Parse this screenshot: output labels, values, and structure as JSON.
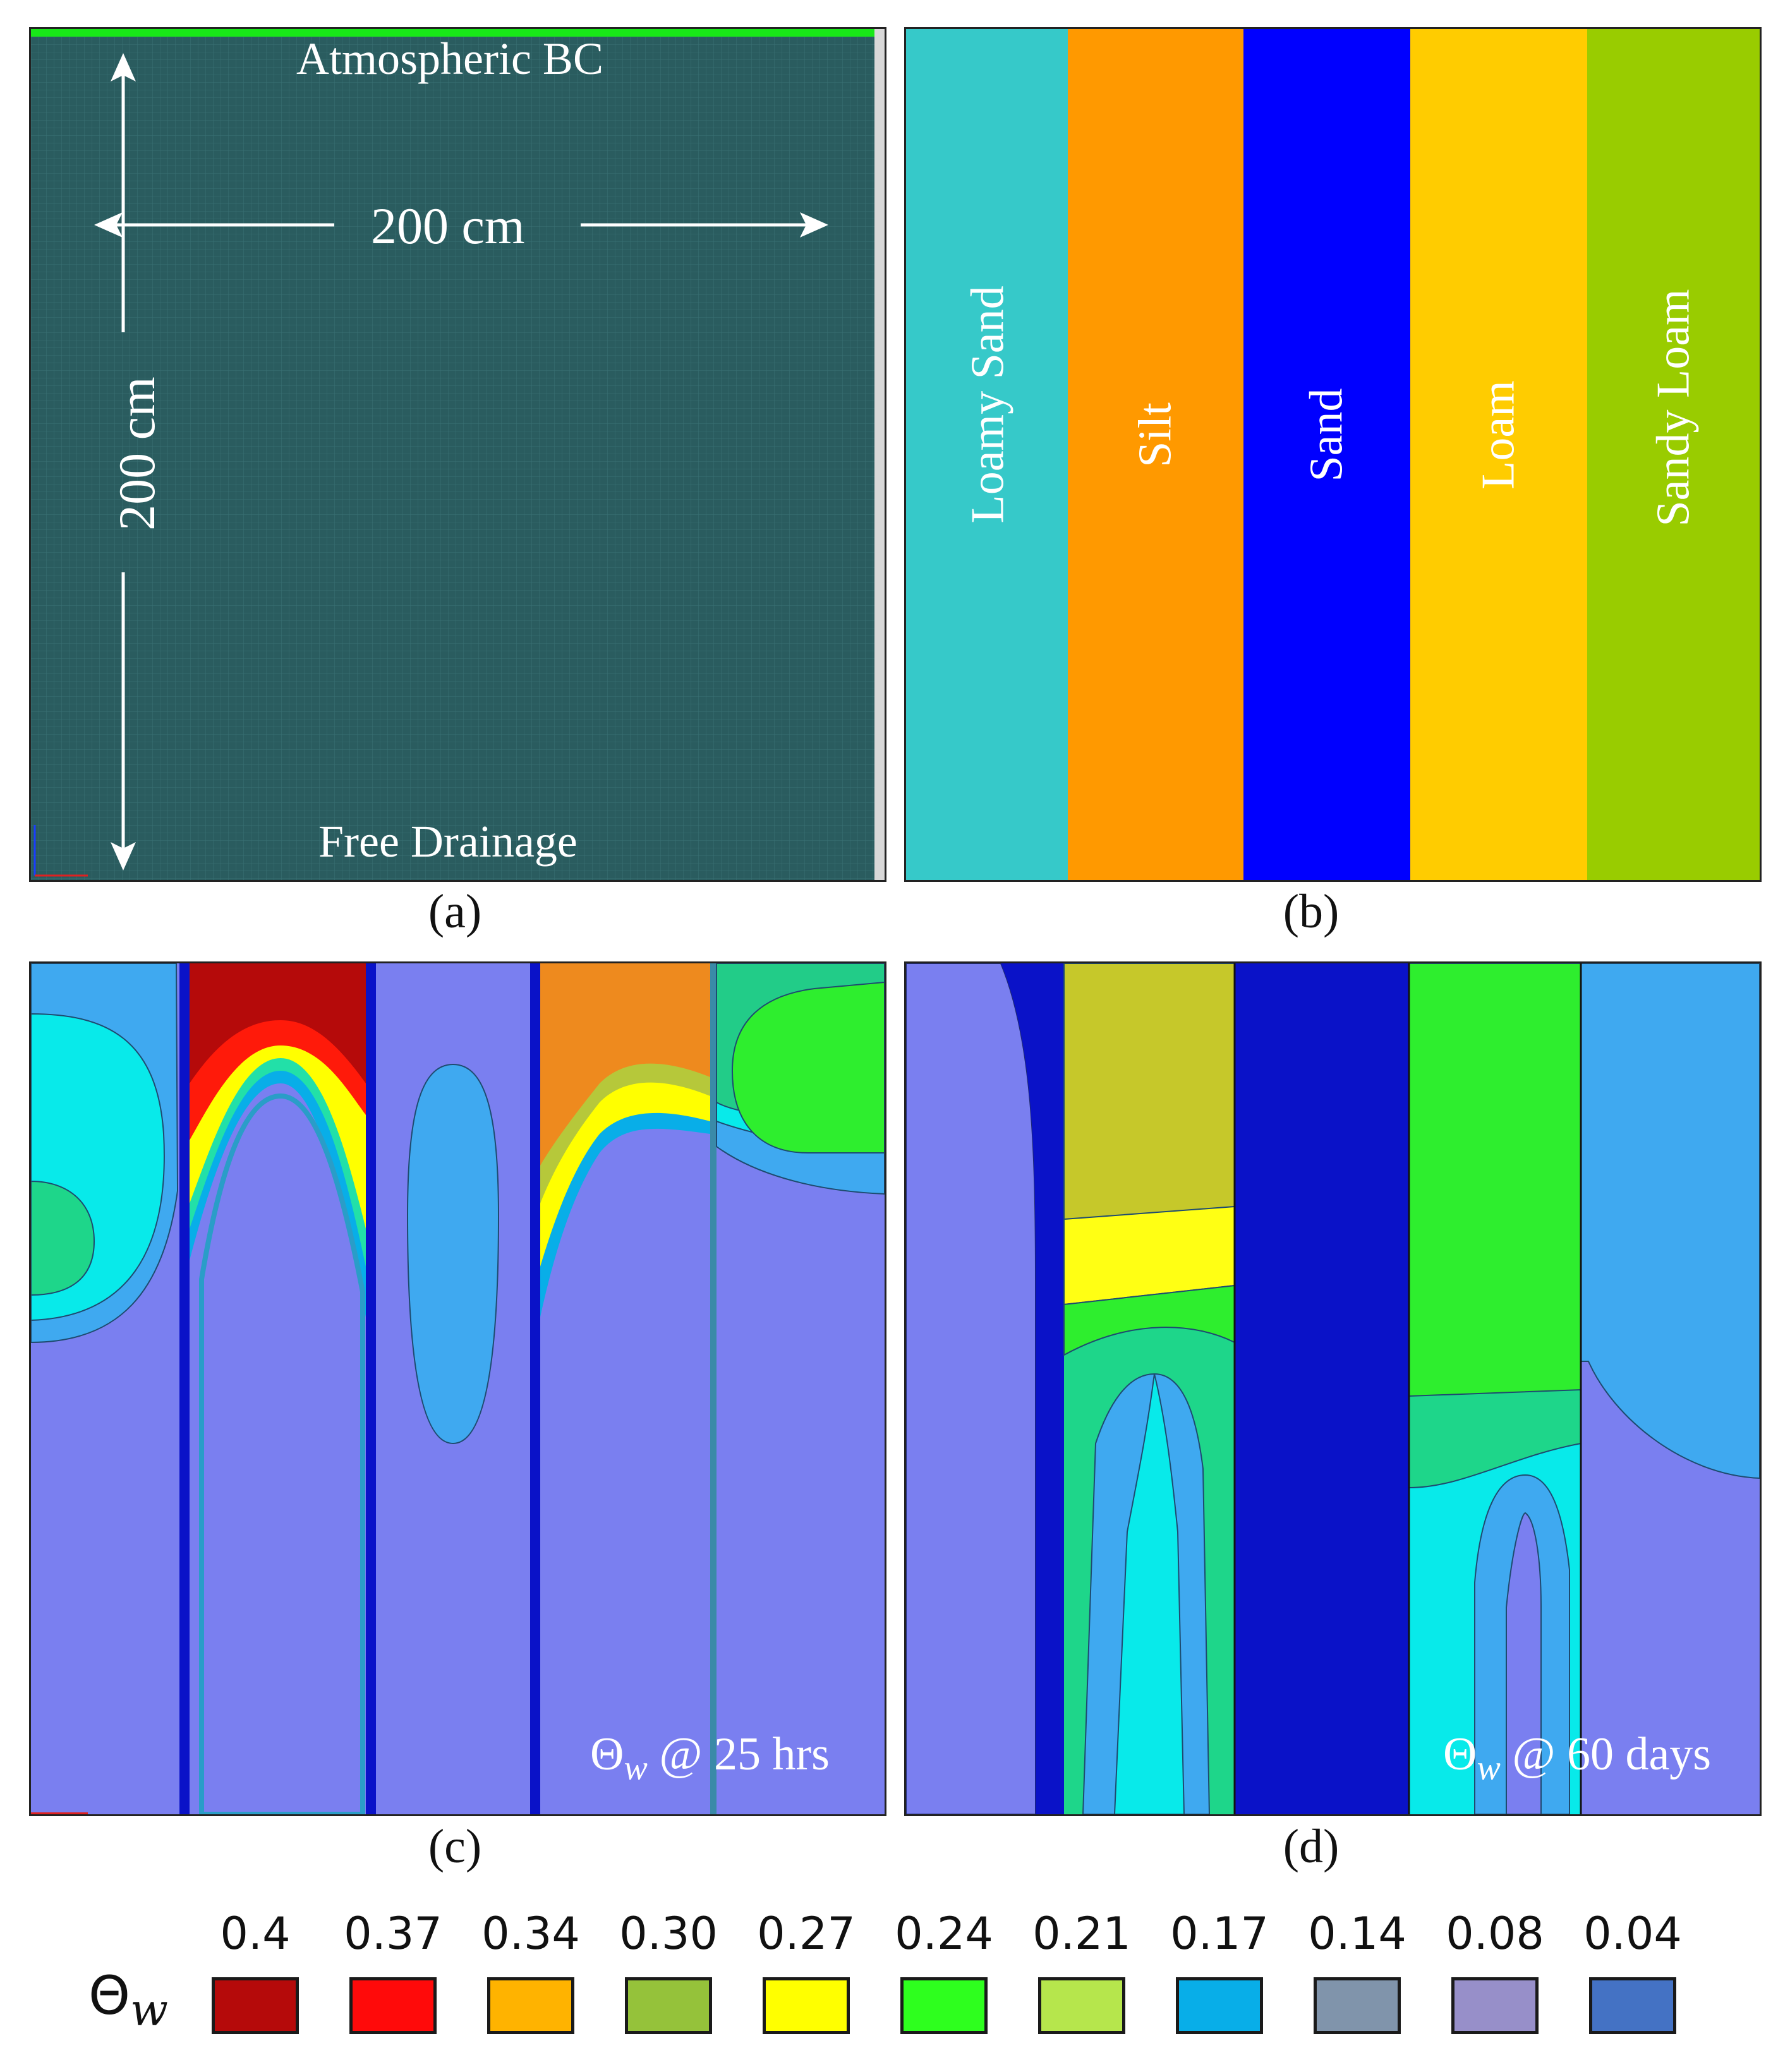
{
  "panel_a": {
    "top_bc": "Atmospheric BC",
    "bottom_bc": "Free Drainage",
    "width_label": "200 cm",
    "height_label": "200 cm",
    "caption": "(a)"
  },
  "panel_b": {
    "soils": [
      "Loamy Sand",
      "Silt",
      "Sand",
      "Loam",
      "Sandy Loam"
    ],
    "caption": "(b)"
  },
  "panel_c": {
    "theta_symbol": "Θ",
    "theta_sub": "w",
    "time_label": "@ 25 hrs",
    "caption": "(c)"
  },
  "panel_d": {
    "theta_symbol": "Θ",
    "theta_sub": "w",
    "time_label": "@ 60 days",
    "caption": "(d)"
  },
  "legend": {
    "symbol": "Θ",
    "symbol_sub": "w",
    "values": [
      "0.4",
      "0.37",
      "0.34",
      "0.30",
      "0.27",
      "0.24",
      "0.21",
      "0.17",
      "0.14",
      "0.08",
      "0.04"
    ],
    "colors": [
      "#b50a0a",
      "#ff0a0a",
      "#ffb300",
      "#95c23a",
      "#ffff00",
      "#2eff1e",
      "#b6e64c",
      "#08aee8",
      "#8094ab",
      "#978fc9",
      "#4472c4"
    ]
  },
  "colors": {
    "mesh": "#2a5c5f",
    "loamy_sand": "#36c9c9",
    "silt": "#ff9900",
    "sand": "#0000ff",
    "loam": "#ffcc00",
    "sandy_loam": "#99cc00",
    "dry": "#7a7ff0"
  }
}
